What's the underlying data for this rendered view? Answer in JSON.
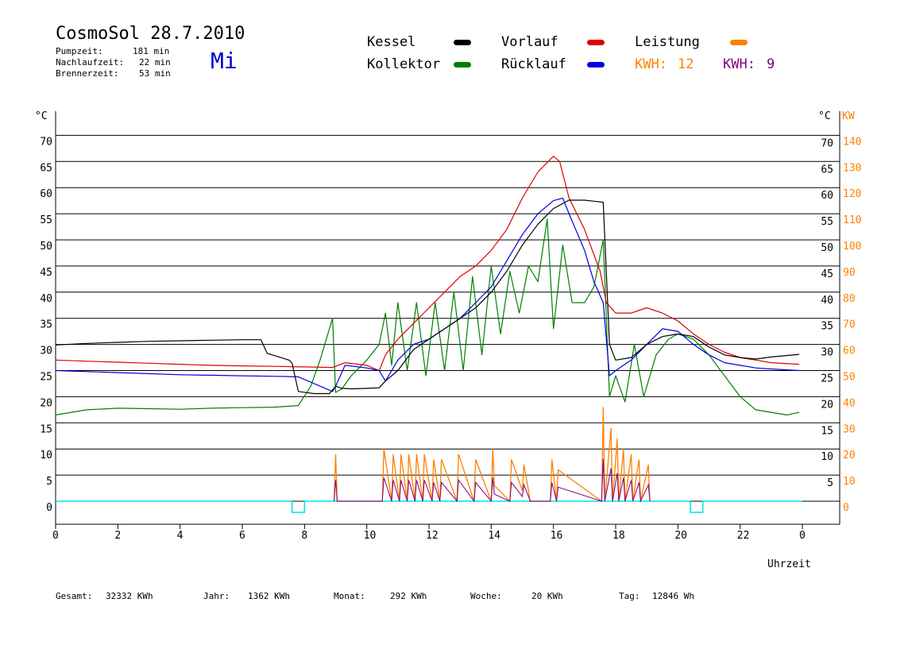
{
  "header": {
    "title": "CosmoSol 28.7.2010",
    "stats": [
      {
        "label": "Pumpzeit:",
        "value": "181 min"
      },
      {
        "label": "Nachlaufzeit:",
        "value": "22 min"
      },
      {
        "label": "Brennerzeit:",
        "value": "53 min"
      }
    ],
    "day": "Mi"
  },
  "legend": {
    "kessel": "Kessel",
    "kollektor": "Kollektor",
    "vorlauf": "Vorlauf",
    "ruecklauf": "Rücklauf",
    "leistung": "Leistung",
    "kwh1_label": "KWH:",
    "kwh1_value": "12",
    "kwh2_label": "KWH:",
    "kwh2_value": "9"
  },
  "footer": {
    "gesamt_label": "Gesamt:",
    "gesamt_value": "32332 KWh",
    "jahr_label": "Jahr:",
    "jahr_value": "1362 KWh",
    "monat_label": "Monat:",
    "monat_value": "292 KWh",
    "woche_label": "Woche:",
    "woche_value": "20 KWh",
    "tag_label": "Tag:",
    "tag_value": "12846 Wh"
  },
  "colors": {
    "kessel": "#000000",
    "kollektor": "#008000",
    "vorlauf": "#e00000",
    "ruecklauf": "#0000e0",
    "leistung": "#ff8000",
    "kwh2": "#800080",
    "pump": "#00e0e0",
    "axis_right": "#ff8000"
  },
  "chart_data": {
    "type": "line",
    "xlabel": "Uhrzeit",
    "y_left_unit": "°C",
    "y_right_unit_1": "°C",
    "y_right_unit_2": "KW",
    "ylim": [
      -3,
      74
    ],
    "x_ticks": [
      "0",
      "2",
      "4",
      "6",
      "8",
      "10",
      "12",
      "14",
      "16",
      "18",
      "20",
      "22",
      "0"
    ],
    "y_left_ticks": [
      "0",
      "5",
      "10",
      "15",
      "20",
      "25",
      "30",
      "35",
      "40",
      "45",
      "50",
      "55",
      "60",
      "65",
      "70"
    ],
    "y_right_ticks": [
      "5",
      "10",
      "15",
      "20",
      "25",
      "30",
      "35",
      "40",
      "45",
      "50",
      "55",
      "60",
      "65",
      "70"
    ],
    "y_right_kw_ticks": [
      "0",
      "10",
      "20",
      "30",
      "40",
      "50",
      "60",
      "70",
      "80",
      "90",
      "100",
      "110",
      "120",
      "130",
      "140"
    ],
    "grid": true,
    "series": [
      {
        "name": "Kessel",
        "x": [
          0,
          1,
          2,
          3,
          4,
          5,
          6,
          6.6,
          6.8,
          7.5,
          7.6,
          7.8,
          8.3,
          8.8,
          9.0,
          9.2,
          9.5,
          10.0,
          10.4,
          10.6,
          11.0,
          11.5,
          12,
          12.5,
          13,
          13.5,
          14,
          14.5,
          15,
          15.5,
          16,
          16.5,
          17,
          17.3,
          17.6,
          17.8,
          18,
          18.5,
          19,
          19.5,
          20,
          20.5,
          21,
          21.5,
          22,
          22.5,
          23,
          23.9
        ],
        "values": [
          29.9,
          30.2,
          30.4,
          30.6,
          30.7,
          30.8,
          30.9,
          30.9,
          28.3,
          27.0,
          26.4,
          21.0,
          20.6,
          20.6,
          22.0,
          21.6,
          21.5,
          21.6,
          21.7,
          23.0,
          25.0,
          29.0,
          31.0,
          33.0,
          35.0,
          37.0,
          40.0,
          44.0,
          49.0,
          53.0,
          56.0,
          57.6,
          57.6,
          57.4,
          57.2,
          30.0,
          27.0,
          27.5,
          30.0,
          31.5,
          32.0,
          31.5,
          29.5,
          28.0,
          27.5,
          27.2,
          27.6,
          28.1
        ]
      },
      {
        "name": "Kollektor",
        "x": [
          0,
          1,
          2,
          3,
          4,
          5,
          6,
          7,
          7.8,
          8.2,
          8.5,
          8.9,
          9.0,
          9.2,
          9.5,
          10.0,
          10.4,
          10.6,
          10.8,
          11.0,
          11.3,
          11.6,
          11.9,
          12.2,
          12.5,
          12.8,
          13.1,
          13.4,
          13.7,
          14.0,
          14.3,
          14.6,
          14.9,
          15.2,
          15.5,
          15.8,
          16.0,
          16.3,
          16.6,
          17.0,
          17.3,
          17.6,
          17.8,
          18.0,
          18.3,
          18.6,
          18.9,
          19.3,
          19.7,
          20,
          20.5,
          21,
          21.5,
          22,
          22.5,
          23,
          23.5,
          23.9
        ],
        "values": [
          16.5,
          17.5,
          17.8,
          17.7,
          17.6,
          17.8,
          17.9,
          18.0,
          18.3,
          22.0,
          27.0,
          35.0,
          20.8,
          21.5,
          24.0,
          27.0,
          30.0,
          36.0,
          26.0,
          38.0,
          25.0,
          38.0,
          24.0,
          38.0,
          25.0,
          40.0,
          25.0,
          43.0,
          28.0,
          45.0,
          32.0,
          44.0,
          36.0,
          45.0,
          42.0,
          54.0,
          33.0,
          49.0,
          38.0,
          38.0,
          41.0,
          50.0,
          20.0,
          24.0,
          19.0,
          30.0,
          20.0,
          28.0,
          31.0,
          32.0,
          31.0,
          28.0,
          24.0,
          20.0,
          17.5,
          17.0,
          16.5,
          17.0
        ]
      },
      {
        "name": "Vorlauf",
        "x": [
          0,
          1,
          2,
          3,
          4,
          5,
          6,
          7,
          8,
          8.9,
          9.0,
          9.3,
          10.0,
          10.4,
          10.6,
          11.0,
          11.5,
          12,
          12.5,
          13,
          13.5,
          14,
          14.5,
          15,
          15.5,
          16,
          16.2,
          16.5,
          17,
          17.5,
          17.7,
          18,
          18.5,
          19,
          19.5,
          20,
          20.5,
          21,
          21.5,
          22,
          22.5,
          23,
          23.9
        ],
        "values": [
          27.0,
          26.8,
          26.6,
          26.4,
          26.2,
          26.0,
          25.9,
          25.8,
          25.7,
          25.6,
          25.8,
          26.5,
          26.0,
          25.0,
          28.0,
          31.0,
          34.0,
          37.0,
          40.0,
          43.0,
          45.0,
          48.0,
          52.0,
          58.0,
          63.0,
          66.0,
          65.0,
          58.0,
          52.0,
          44.0,
          38.0,
          36.0,
          36.0,
          37.0,
          36.0,
          34.5,
          32.0,
          30.0,
          28.5,
          27.5,
          27.0,
          26.5,
          26.2
        ]
      },
      {
        "name": "Rücklauf",
        "x": [
          0,
          1,
          2,
          3,
          4,
          5,
          6,
          7,
          7.8,
          8.9,
          9.0,
          9.3,
          10.0,
          10.4,
          10.6,
          11.0,
          11.5,
          12,
          12.5,
          13,
          13.5,
          14,
          14.5,
          15,
          15.5,
          16,
          16.3,
          16.5,
          17,
          17.3,
          17.6,
          17.8,
          18,
          18.5,
          19,
          19.5,
          20,
          20.5,
          21,
          21.5,
          22,
          22.5,
          23,
          23.9
        ],
        "values": [
          25.0,
          24.8,
          24.6,
          24.4,
          24.2,
          24.1,
          24.0,
          23.9,
          23.8,
          21.0,
          22.0,
          26.0,
          25.5,
          25.0,
          23.0,
          27.0,
          30.0,
          31.0,
          33.0,
          35.0,
          38.0,
          41.0,
          46.0,
          51.0,
          55.0,
          57.5,
          58.0,
          55.0,
          48.0,
          42.0,
          38.0,
          24.0,
          25.0,
          27.0,
          30.0,
          33.0,
          32.5,
          30.0,
          28.0,
          26.5,
          26.0,
          25.5,
          25.3,
          25.0
        ]
      }
    ],
    "power": {
      "name": "Leistung",
      "kw_scale_per_degree": 2,
      "x": [
        8.95,
        9.0,
        9.05,
        10.5,
        10.55,
        10.8,
        10.85,
        11.05,
        11.1,
        11.3,
        11.35,
        11.55,
        11.6,
        11.8,
        11.85,
        12.1,
        12.15,
        12.35,
        12.4,
        12.9,
        12.95,
        13.45,
        13.5,
        14.0,
        14.05,
        14.1,
        14.6,
        14.65,
        15.0,
        15.05,
        15.2,
        15.25,
        15.9,
        15.95,
        16.1,
        16.15,
        17.55,
        17.6,
        17.65,
        17.85,
        17.9,
        18.05,
        18.1,
        18.25,
        18.3,
        18.5,
        18.55,
        18.75,
        18.8,
        19.05,
        19.1
      ],
      "values": [
        0,
        9,
        0,
        0,
        10,
        0,
        9,
        0,
        9,
        0,
        9,
        0,
        9,
        0,
        9,
        0,
        8,
        0,
        8,
        0,
        9,
        0,
        8,
        0,
        10,
        3,
        0,
        8,
        2,
        7,
        2,
        0,
        0,
        8,
        0,
        6,
        0,
        18,
        0,
        14,
        0,
        12,
        0,
        10,
        0,
        9,
        0,
        8,
        0,
        7,
        0
      ]
    },
    "pump": {
      "on_intervals": [
        [
          7.6,
          8.0
        ],
        [
          20.4,
          20.8
        ]
      ]
    }
  }
}
